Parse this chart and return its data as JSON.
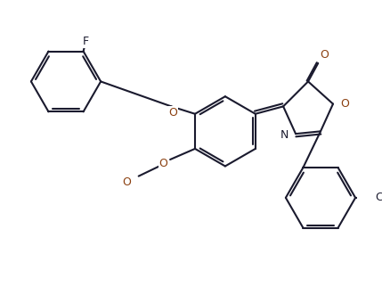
{
  "bg_color": "#ffffff",
  "line_color": "#1a1a2e",
  "o_color": "#8B4010",
  "bond_lw": 1.5,
  "dbo": 0.008,
  "figsize": [
    4.29,
    3.31
  ],
  "dpi": 100,
  "xlim": [
    0,
    429
  ],
  "ylim": [
    0,
    331
  ]
}
